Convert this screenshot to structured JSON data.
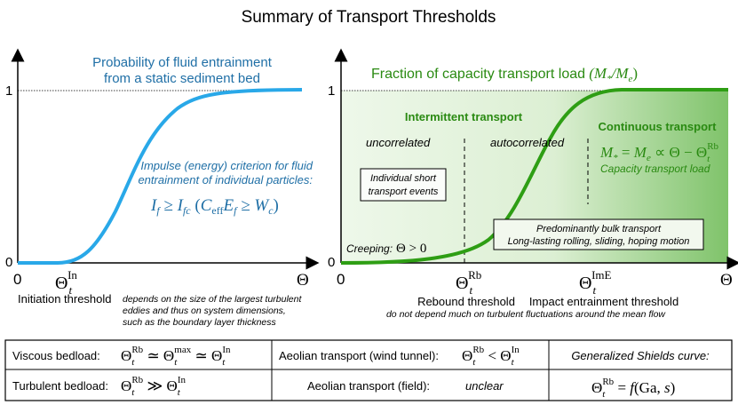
{
  "title": "Summary of Transport Thresholds",
  "left_panel": {
    "heading_line1": "Probability of fluid entrainment",
    "heading_line2": "from a static sediment bed",
    "y_tick_1": "1",
    "y_tick_0": "0",
    "x_tick_0": "0",
    "x_axis_symbol": "Θ",
    "threshold_symbol": "Θ",
    "threshold_sub": "t",
    "threshold_sup": "In",
    "threshold_label": "Initiation threshold",
    "threshold_note_1": "depends on the size of the largest turbulent",
    "threshold_note_2": "eddies and thus on system dimensions,",
    "threshold_note_3": "such as the boundary layer thickness",
    "criterion_line1": "Impulse (energy) criterion for fluid",
    "criterion_line2": "entrainment of individual particles:",
    "criterion_formula": "I_f ≥ I_fc (C_eff E_f ≥ W_c)",
    "curve_color": "#29a8e8",
    "text_color": "#1f6fa6"
  },
  "right_panel": {
    "heading": "Fraction of capacity transport load",
    "heading_formula": "(M*/Me)",
    "y_tick_1": "1",
    "y_tick_0": "0",
    "x_tick_0": "0",
    "x_axis_symbol": "Θ",
    "intermittent_label": "Intermittent transport",
    "continuous_label": "Continuous transport",
    "uncorrelated_label": "uncorrelated",
    "autocorrelated_label": "autocorrelated",
    "capacity_formula": "M* = Me ∝ Θ − Θt^Rb",
    "capacity_label": "Capacity transport load",
    "individual_box_line1": "Individual short",
    "individual_box_line2": "transport events",
    "bulk_box_line1": "Predominantly bulk transport",
    "bulk_box_line2": "Long-lasting rolling, sliding, hoping motion",
    "creeping_label": "Creeping:",
    "creeping_formula": "Θ > 0",
    "rebound_symbol_sup": "Rb",
    "rebound_label": "Rebound threshold",
    "impact_symbol_sup": "ImE",
    "impact_label": "Impact entrainment threshold",
    "thresholds_note": "do not depend much on turbulent fluctuations around the mean flow",
    "curve_color": "#2e9e14",
    "text_color": "#2a8a12"
  },
  "table": {
    "viscous_label": "Viscous bedload:",
    "viscous_relation": "Θt^Rb ≃ Θt^max ≃ Θt^In",
    "turbulent_label": "Turbulent bedload:",
    "turbulent_relation": "Θt^Rb ≫ Θt^In",
    "aeolian_tunnel_label": "Aeolian transport (wind tunnel):",
    "aeolian_tunnel_relation": "Θt^Rb < Θt^In",
    "aeolian_field_label": "Aeolian transport (field):",
    "aeolian_field_value": "unclear",
    "shields_label": "Generalized Shields curve:",
    "shields_relation": "Θt^Rb = f(Ga, s)"
  }
}
